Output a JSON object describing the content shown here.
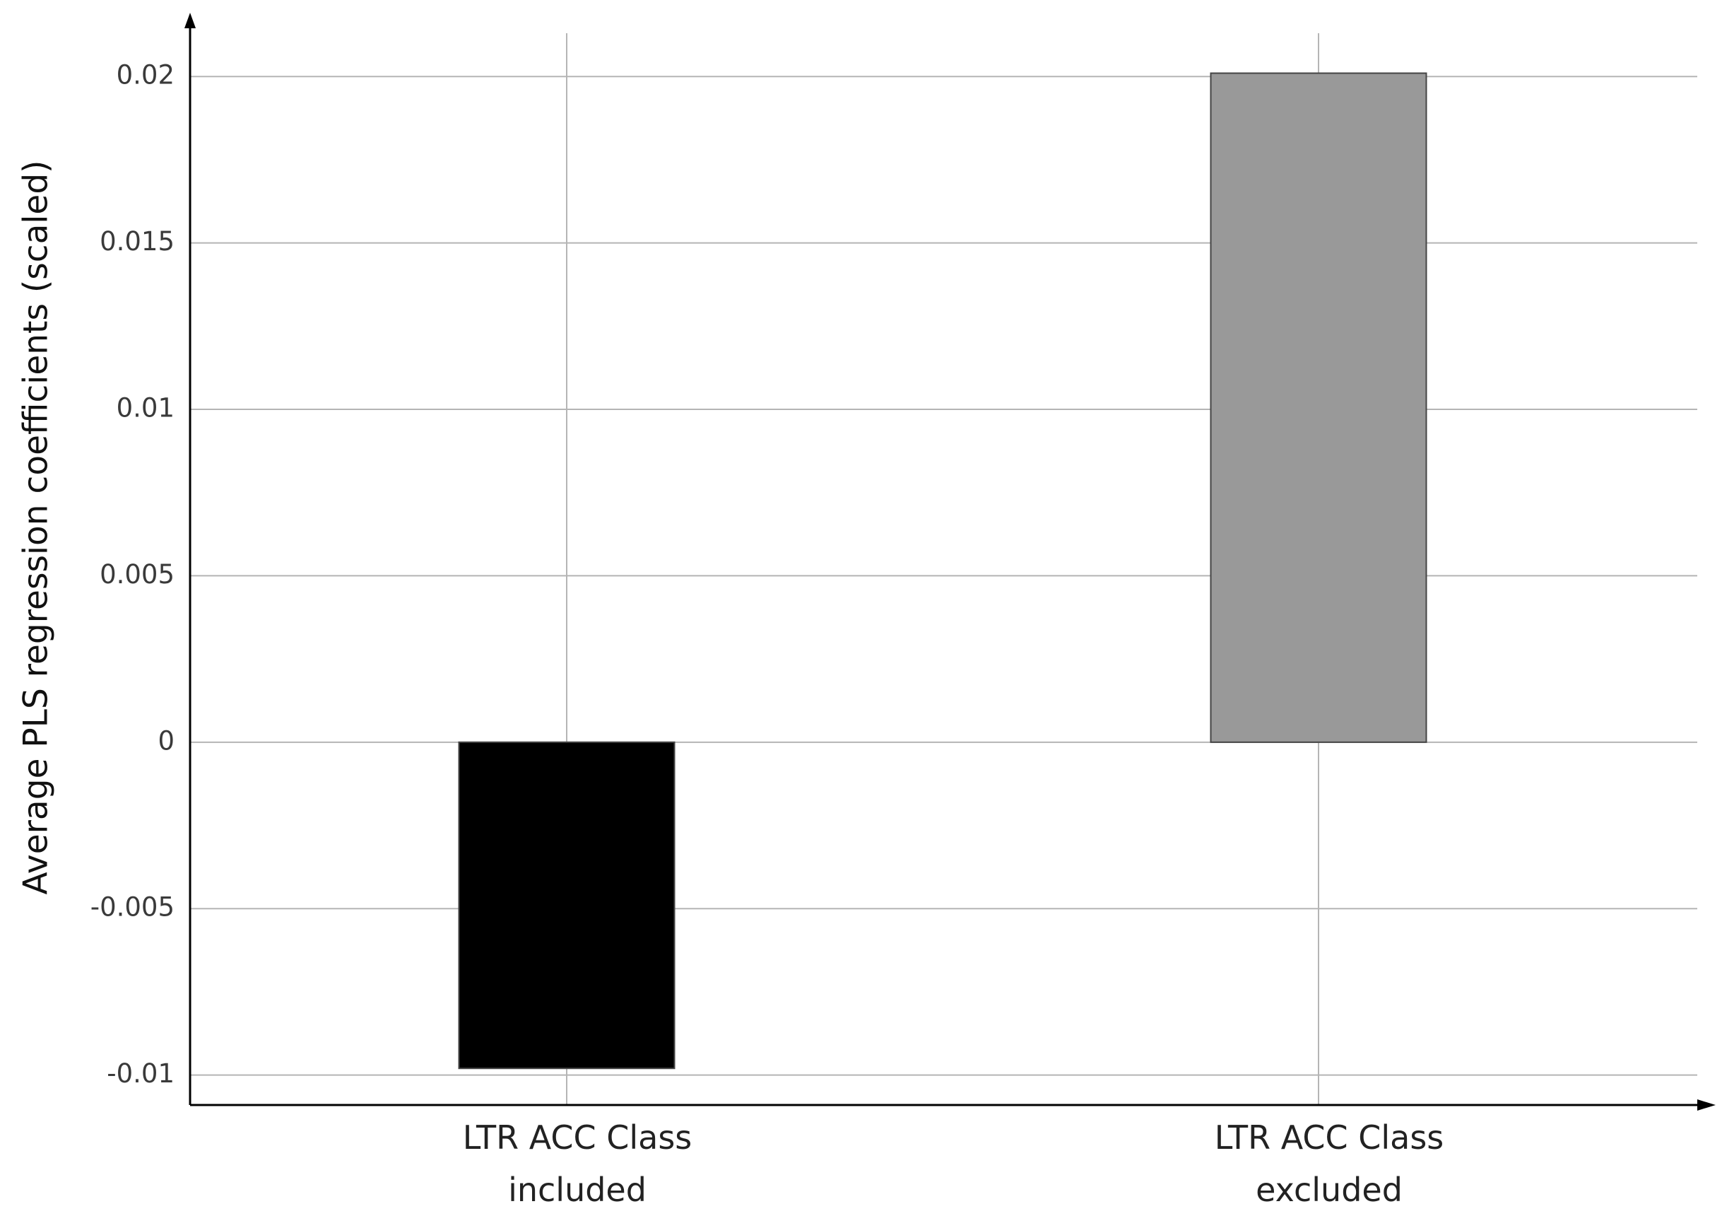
{
  "chart_data": {
    "type": "bar",
    "y_label": "Average PLS regression coefficients (scaled)",
    "categories": [
      "LTR ACC Class included",
      "LTR ACC Class excluded"
    ],
    "values": [
      -0.0098,
      0.0201
    ],
    "colors": [
      "#000000",
      "#999999"
    ],
    "ylim": [
      -0.0109,
      0.0213
    ],
    "yticks": [
      -0.01,
      -0.005,
      0,
      0.005,
      0.01,
      0.015,
      0.02
    ],
    "grid": true
  }
}
